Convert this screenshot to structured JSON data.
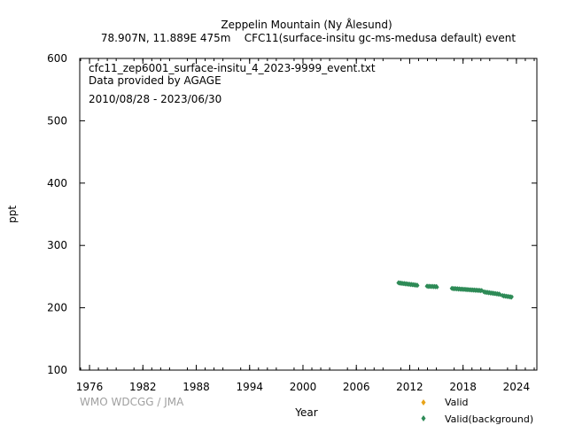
{
  "header": {
    "title": "Zeppelin Mountain (Ny Ålesund)",
    "subtitle": "78.907N, 11.889E 475m    CFC11(surface-insitu gc-ms-medusa default) event"
  },
  "info": {
    "filename": "cfc11_zep6001_surface-insitu_4_2023-9999_event.txt",
    "provider": "Data provided by AGAGE",
    "period": "2010/08/28 - 2023/06/30"
  },
  "credit": "WMO WDCGG / JMA",
  "colors": {
    "valid": "#e8a317",
    "valid_background": "#2e8b57"
  },
  "chart_data": {
    "type": "scatter",
    "title": "",
    "xlabel": "Year",
    "ylabel": "ppt",
    "xlim": [
      1974.9,
      2026.3
    ],
    "ylim": [
      100,
      600
    ],
    "xticks": [
      "1976",
      "1982",
      "1988",
      "1994",
      "2000",
      "2006",
      "2012",
      "2018",
      "2024"
    ],
    "yticks": [
      "100",
      "200",
      "300",
      "400",
      "500",
      "600"
    ],
    "grid": false,
    "legend_position": "bottom-right",
    "series": [
      {
        "name": "Valid",
        "marker": "diamond",
        "x": [],
        "y": []
      },
      {
        "name": "Valid(background)",
        "marker": "diamond",
        "segments": [
          {
            "x_start": 2010.7,
            "x_end": 2012.9,
            "y_start": 240.0,
            "y_end": 236.0
          },
          {
            "x_start": 2013.9,
            "x_end": 2015.1,
            "y_start": 234.5,
            "y_end": 233.8
          },
          {
            "x_start": 2016.7,
            "x_end": 2020.1,
            "y_start": 231.0,
            "y_end": 227.5
          },
          {
            "x_start": 2020.3,
            "x_end": 2022.2,
            "y_start": 225.5,
            "y_end": 221.5
          },
          {
            "x_start": 2022.4,
            "x_end": 2023.5,
            "y_start": 219.5,
            "y_end": 217.0
          }
        ]
      }
    ]
  }
}
